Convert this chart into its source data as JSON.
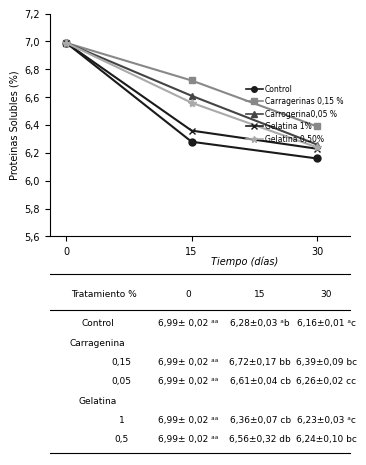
{
  "time_points": [
    0,
    15,
    30
  ],
  "series": [
    {
      "label": "Control",
      "values": [
        6.99,
        6.28,
        6.16
      ],
      "color": "#1a1a1a",
      "marker": "o",
      "markersize": 5,
      "linestyle": "-",
      "linewidth": 1.5
    },
    {
      "label": "Carragerinas 0,15 %",
      "values": [
        6.99,
        6.72,
        6.39
      ],
      "color": "#888888",
      "marker": "s",
      "markersize": 5,
      "linestyle": "-",
      "linewidth": 1.5
    },
    {
      "label": "Carrogerina0,05 %",
      "values": [
        6.99,
        6.61,
        6.26
      ],
      "color": "#444444",
      "marker": "^",
      "markersize": 5,
      "linestyle": "-",
      "linewidth": 1.5
    },
    {
      "label": "Gelatina 1%",
      "values": [
        6.99,
        6.36,
        6.23
      ],
      "color": "#1a1a1a",
      "marker": "x",
      "markersize": 5,
      "linestyle": "-",
      "linewidth": 1.5
    },
    {
      "label": "Gelatina 0,50%",
      "values": [
        6.99,
        6.56,
        6.24
      ],
      "color": "#aaaaaa",
      "marker": "*",
      "markersize": 6,
      "linestyle": "-",
      "linewidth": 1.5
    }
  ],
  "ylabel": "Proteinas Solubles (%)",
  "ylim": [
    5.6,
    7.2
  ],
  "yticks": [
    5.6,
    5.8,
    6.0,
    6.2,
    6.4,
    6.6,
    6.8,
    7.0,
    7.2
  ],
  "xticks": [
    0,
    15,
    30
  ],
  "background_color": "#ffffff",
  "table_header": "Tiempo (días)",
  "sub_headers": [
    "Tratamiento %",
    "0",
    "15",
    "30"
  ],
  "table_rows": [
    [
      "Control",
      "6,99± 0,02 ᵃᵃ",
      "6,28±0,03 ᵃb",
      "6,16±0,01 ᵃc"
    ],
    [
      "Carragenina",
      "",
      "",
      ""
    ],
    [
      "0,15",
      "6,99± 0,02 ᵃᵃ",
      "6,72±0,17 bb",
      "6,39±0,09 bc"
    ],
    [
      "0,05",
      "6,99± 0,02 ᵃᵃ",
      "6,61±0,04 cb",
      "6,26±0,02 cc"
    ],
    [
      "Gelatina",
      "",
      "",
      ""
    ],
    [
      "1",
      "6,99± 0,02 ᵃᵃ",
      "6,36±0,07 cb",
      "6,23±0,03 ᵃc"
    ],
    [
      "0,5",
      "6,99± 0,02 ᵃᵃ",
      "6,56±0,32 db",
      "6,24±0,10 bc"
    ]
  ],
  "indented_rows": [
    "0,15",
    "0,05",
    "1",
    "0,5"
  ]
}
